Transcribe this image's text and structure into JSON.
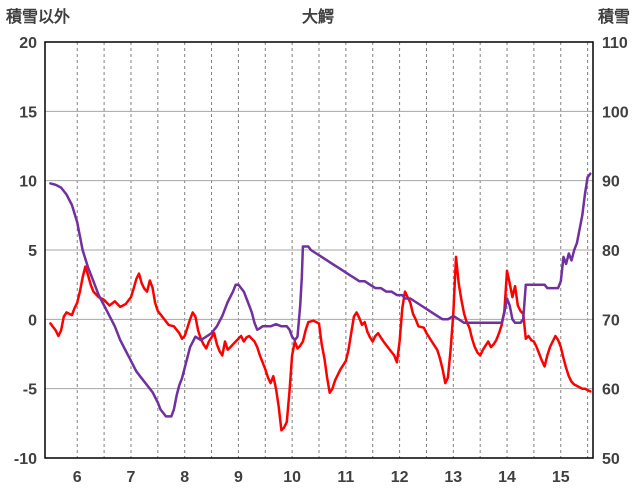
{
  "colors": {
    "red_series": "#ff0000",
    "purple_series": "#7030a0",
    "grid": "#a6a6a6",
    "grid_dashed": "#808080",
    "border": "#000000",
    "text": "#404040",
    "background": "#ffffff"
  },
  "chart_data": {
    "type": "line",
    "title": "大鰐",
    "left_axis": {
      "label": "積雪以外",
      "min": -10,
      "max": 20,
      "ticks": [
        20,
        15,
        10,
        5,
        0,
        -5,
        -10
      ]
    },
    "right_axis": {
      "label": "積雪",
      "min": 50,
      "max": 110,
      "ticks": [
        110,
        100,
        90,
        80,
        70,
        60,
        50
      ]
    },
    "x_axis": {
      "min": 5.4,
      "max": 15.6,
      "ticks": [
        6,
        7,
        8,
        9,
        10,
        11,
        12,
        13,
        14,
        15
      ],
      "grid_step": 0.5,
      "grid_start": 6,
      "grid_end": 15.5
    },
    "grid": {
      "horizontal": "solid",
      "vertical": "dashed"
    },
    "legend": "none",
    "series": [
      {
        "name": "red",
        "color": "#ff0000",
        "axis": "left",
        "points": [
          [
            5.5,
            -0.3
          ],
          [
            5.6,
            -0.8
          ],
          [
            5.65,
            -1.2
          ],
          [
            5.7,
            -0.8
          ],
          [
            5.75,
            0.2
          ],
          [
            5.8,
            0.5
          ],
          [
            5.9,
            0.3
          ],
          [
            5.95,
            0.8
          ],
          [
            6.0,
            1.2
          ],
          [
            6.05,
            2.0
          ],
          [
            6.1,
            3.0
          ],
          [
            6.15,
            3.8
          ],
          [
            6.2,
            3.2
          ],
          [
            6.25,
            2.5
          ],
          [
            6.3,
            2.0
          ],
          [
            6.4,
            1.6
          ],
          [
            6.5,
            1.4
          ],
          [
            6.6,
            1.0
          ],
          [
            6.7,
            1.3
          ],
          [
            6.8,
            0.9
          ],
          [
            6.9,
            1.1
          ],
          [
            7.0,
            1.6
          ],
          [
            7.05,
            2.2
          ],
          [
            7.1,
            2.9
          ],
          [
            7.15,
            3.3
          ],
          [
            7.2,
            2.6
          ],
          [
            7.25,
            2.2
          ],
          [
            7.3,
            2.0
          ],
          [
            7.35,
            2.8
          ],
          [
            7.4,
            2.3
          ],
          [
            7.45,
            1.2
          ],
          [
            7.5,
            0.6
          ],
          [
            7.6,
            0.1
          ],
          [
            7.7,
            -0.4
          ],
          [
            7.8,
            -0.5
          ],
          [
            7.9,
            -1.0
          ],
          [
            7.95,
            -1.4
          ],
          [
            8.0,
            -1.2
          ],
          [
            8.05,
            -0.6
          ],
          [
            8.1,
            0.0
          ],
          [
            8.15,
            0.5
          ],
          [
            8.2,
            0.2
          ],
          [
            8.25,
            -0.8
          ],
          [
            8.3,
            -1.4
          ],
          [
            8.35,
            -1.8
          ],
          [
            8.4,
            -2.1
          ],
          [
            8.45,
            -1.6
          ],
          [
            8.5,
            -1.3
          ],
          [
            8.55,
            -1.0
          ],
          [
            8.6,
            -1.8
          ],
          [
            8.65,
            -2.3
          ],
          [
            8.7,
            -2.6
          ],
          [
            8.75,
            -1.6
          ],
          [
            8.8,
            -2.2
          ],
          [
            8.85,
            -2.0
          ],
          [
            8.9,
            -1.8
          ],
          [
            8.95,
            -1.6
          ],
          [
            9.0,
            -1.4
          ],
          [
            9.05,
            -1.2
          ],
          [
            9.1,
            -1.6
          ],
          [
            9.15,
            -1.3
          ],
          [
            9.2,
            -1.2
          ],
          [
            9.25,
            -1.4
          ],
          [
            9.3,
            -1.6
          ],
          [
            9.35,
            -2.0
          ],
          [
            9.4,
            -2.6
          ],
          [
            9.45,
            -3.1
          ],
          [
            9.5,
            -3.6
          ],
          [
            9.55,
            -4.2
          ],
          [
            9.6,
            -4.6
          ],
          [
            9.65,
            -4.1
          ],
          [
            9.7,
            -5.0
          ],
          [
            9.75,
            -6.3
          ],
          [
            9.8,
            -8.0
          ],
          [
            9.85,
            -7.8
          ],
          [
            9.9,
            -7.4
          ],
          [
            9.95,
            -5.2
          ],
          [
            10.0,
            -2.6
          ],
          [
            10.05,
            -1.6
          ],
          [
            10.1,
            -2.1
          ],
          [
            10.15,
            -1.9
          ],
          [
            10.2,
            -1.6
          ],
          [
            10.25,
            -0.8
          ],
          [
            10.3,
            -0.2
          ],
          [
            10.4,
            -0.1
          ],
          [
            10.5,
            -0.3
          ],
          [
            10.55,
            -1.8
          ],
          [
            10.6,
            -2.8
          ],
          [
            10.65,
            -4.2
          ],
          [
            10.7,
            -5.3
          ],
          [
            10.75,
            -5.0
          ],
          [
            10.8,
            -4.4
          ],
          [
            10.9,
            -3.6
          ],
          [
            11.0,
            -3.0
          ],
          [
            11.05,
            -2.2
          ],
          [
            11.1,
            -1.0
          ],
          [
            11.15,
            0.2
          ],
          [
            11.2,
            0.5
          ],
          [
            11.25,
            0.1
          ],
          [
            11.3,
            -0.4
          ],
          [
            11.35,
            -0.2
          ],
          [
            11.4,
            -0.9
          ],
          [
            11.45,
            -1.3
          ],
          [
            11.5,
            -1.6
          ],
          [
            11.55,
            -1.2
          ],
          [
            11.6,
            -1.0
          ],
          [
            11.65,
            -1.3
          ],
          [
            11.7,
            -1.6
          ],
          [
            11.8,
            -2.1
          ],
          [
            11.9,
            -2.6
          ],
          [
            11.95,
            -3.1
          ],
          [
            12.0,
            -1.6
          ],
          [
            12.05,
            0.8
          ],
          [
            12.1,
            2.0
          ],
          [
            12.15,
            1.6
          ],
          [
            12.2,
            1.2
          ],
          [
            12.25,
            0.4
          ],
          [
            12.3,
            0.0
          ],
          [
            12.35,
            -0.5
          ],
          [
            12.45,
            -0.6
          ],
          [
            12.5,
            -1.0
          ],
          [
            12.6,
            -1.6
          ],
          [
            12.7,
            -2.2
          ],
          [
            12.75,
            -2.8
          ],
          [
            12.8,
            -3.6
          ],
          [
            12.85,
            -4.6
          ],
          [
            12.9,
            -4.2
          ],
          [
            12.95,
            -2.2
          ],
          [
            13.0,
            0.4
          ],
          [
            13.05,
            4.5
          ],
          [
            13.1,
            2.6
          ],
          [
            13.15,
            1.4
          ],
          [
            13.2,
            0.4
          ],
          [
            13.25,
            -0.2
          ],
          [
            13.3,
            -0.6
          ],
          [
            13.35,
            -1.4
          ],
          [
            13.4,
            -2.0
          ],
          [
            13.45,
            -2.4
          ],
          [
            13.5,
            -2.6
          ],
          [
            13.55,
            -2.2
          ],
          [
            13.6,
            -1.9
          ],
          [
            13.65,
            -1.6
          ],
          [
            13.7,
            -2.0
          ],
          [
            13.75,
            -1.8
          ],
          [
            13.8,
            -1.5
          ],
          [
            13.85,
            -1.0
          ],
          [
            13.9,
            -0.4
          ],
          [
            13.95,
            0.6
          ],
          [
            14.0,
            3.5
          ],
          [
            14.05,
            2.6
          ],
          [
            14.1,
            1.6
          ],
          [
            14.15,
            2.4
          ],
          [
            14.2,
            1.0
          ],
          [
            14.25,
            0.6
          ],
          [
            14.3,
            0.4
          ],
          [
            14.35,
            -1.4
          ],
          [
            14.4,
            -1.2
          ],
          [
            14.45,
            -1.5
          ],
          [
            14.5,
            -1.6
          ],
          [
            14.55,
            -2.0
          ],
          [
            14.6,
            -2.5
          ],
          [
            14.65,
            -3.0
          ],
          [
            14.7,
            -3.4
          ],
          [
            14.75,
            -2.6
          ],
          [
            14.8,
            -2.0
          ],
          [
            14.85,
            -1.6
          ],
          [
            14.9,
            -1.2
          ],
          [
            14.95,
            -1.5
          ],
          [
            15.0,
            -2.0
          ],
          [
            15.05,
            -2.8
          ],
          [
            15.1,
            -3.5
          ],
          [
            15.15,
            -4.1
          ],
          [
            15.2,
            -4.5
          ],
          [
            15.25,
            -4.7
          ],
          [
            15.3,
            -4.8
          ],
          [
            15.35,
            -4.9
          ],
          [
            15.4,
            -5.0
          ],
          [
            15.45,
            -5.0
          ],
          [
            15.5,
            -5.1
          ],
          [
            15.55,
            -5.2
          ]
        ]
      },
      {
        "name": "purple",
        "color": "#7030a0",
        "axis": "right",
        "points": [
          [
            5.5,
            89.6
          ],
          [
            5.6,
            89.4
          ],
          [
            5.7,
            89.0
          ],
          [
            5.8,
            88.0
          ],
          [
            5.9,
            86.5
          ],
          [
            6.0,
            84.0
          ],
          [
            6.05,
            82.0
          ],
          [
            6.1,
            80.0
          ],
          [
            6.2,
            77.5
          ],
          [
            6.3,
            75.5
          ],
          [
            6.4,
            73.5
          ],
          [
            6.5,
            72.0
          ],
          [
            6.6,
            70.5
          ],
          [
            6.7,
            69.0
          ],
          [
            6.8,
            67.0
          ],
          [
            6.9,
            65.5
          ],
          [
            7.0,
            64.0
          ],
          [
            7.1,
            62.5
          ],
          [
            7.2,
            61.5
          ],
          [
            7.3,
            60.5
          ],
          [
            7.4,
            59.5
          ],
          [
            7.5,
            58.0
          ],
          [
            7.55,
            57.0
          ],
          [
            7.6,
            56.5
          ],
          [
            7.65,
            56.0
          ],
          [
            7.75,
            56.0
          ],
          [
            7.8,
            57.0
          ],
          [
            7.85,
            59.0
          ],
          [
            7.9,
            60.5
          ],
          [
            7.95,
            61.5
          ],
          [
            8.0,
            63.0
          ],
          [
            8.1,
            66.0
          ],
          [
            8.2,
            67.5
          ],
          [
            8.3,
            67.0
          ],
          [
            8.4,
            67.5
          ],
          [
            8.5,
            68.0
          ],
          [
            8.6,
            69.0
          ],
          [
            8.7,
            70.5
          ],
          [
            8.8,
            72.5
          ],
          [
            8.9,
            74.0
          ],
          [
            8.95,
            75.0
          ],
          [
            9.0,
            75.0
          ],
          [
            9.05,
            74.5
          ],
          [
            9.1,
            74.0
          ],
          [
            9.15,
            73.0
          ],
          [
            9.2,
            72.0
          ],
          [
            9.25,
            71.0
          ],
          [
            9.3,
            69.5
          ],
          [
            9.35,
            68.5
          ],
          [
            9.4,
            68.7
          ],
          [
            9.45,
            69.0
          ],
          [
            9.5,
            69.0
          ],
          [
            9.6,
            69.0
          ],
          [
            9.7,
            69.3
          ],
          [
            9.8,
            69.0
          ],
          [
            9.9,
            69.0
          ],
          [
            9.95,
            68.5
          ],
          [
            10.0,
            67.5
          ],
          [
            10.05,
            67.0
          ],
          [
            10.1,
            67.5
          ],
          [
            10.15,
            72.0
          ],
          [
            10.18,
            76.0
          ],
          [
            10.2,
            80.5
          ],
          [
            10.3,
            80.5
          ],
          [
            10.35,
            80.0
          ],
          [
            10.45,
            79.5
          ],
          [
            10.55,
            79.0
          ],
          [
            10.65,
            78.5
          ],
          [
            10.75,
            78.0
          ],
          [
            10.85,
            77.5
          ],
          [
            10.95,
            77.0
          ],
          [
            11.05,
            76.5
          ],
          [
            11.15,
            76.0
          ],
          [
            11.25,
            75.5
          ],
          [
            11.35,
            75.5
          ],
          [
            11.45,
            75.0
          ],
          [
            11.55,
            74.5
          ],
          [
            11.65,
            74.5
          ],
          [
            11.75,
            74.0
          ],
          [
            11.85,
            74.0
          ],
          [
            11.95,
            73.5
          ],
          [
            12.05,
            73.5
          ],
          [
            12.1,
            73.0
          ],
          [
            12.2,
            73.0
          ],
          [
            12.3,
            72.5
          ],
          [
            12.4,
            72.0
          ],
          [
            12.5,
            71.5
          ],
          [
            12.6,
            71.0
          ],
          [
            12.7,
            70.5
          ],
          [
            12.8,
            70.0
          ],
          [
            12.9,
            70.0
          ],
          [
            13.0,
            70.5
          ],
          [
            13.1,
            70.0
          ],
          [
            13.2,
            69.5
          ],
          [
            13.3,
            69.5
          ],
          [
            13.4,
            69.5
          ],
          [
            13.5,
            69.5
          ],
          [
            13.6,
            69.5
          ],
          [
            13.7,
            69.5
          ],
          [
            13.8,
            69.5
          ],
          [
            13.9,
            69.5
          ],
          [
            13.95,
            71.0
          ],
          [
            14.0,
            73.0
          ],
          [
            14.05,
            72.0
          ],
          [
            14.1,
            70.0
          ],
          [
            14.15,
            69.5
          ],
          [
            14.2,
            69.5
          ],
          [
            14.25,
            69.5
          ],
          [
            14.3,
            70.0
          ],
          [
            14.35,
            75.0
          ],
          [
            14.4,
            75.0
          ],
          [
            14.5,
            75.0
          ],
          [
            14.6,
            75.0
          ],
          [
            14.7,
            75.0
          ],
          [
            14.75,
            74.5
          ],
          [
            14.8,
            74.5
          ],
          [
            14.9,
            74.5
          ],
          [
            14.95,
            74.5
          ],
          [
            15.0,
            75.5
          ],
          [
            15.05,
            79.0
          ],
          [
            15.1,
            78.0
          ],
          [
            15.15,
            79.5
          ],
          [
            15.2,
            78.5
          ],
          [
            15.25,
            80.0
          ],
          [
            15.3,
            81.0
          ],
          [
            15.35,
            83.0
          ],
          [
            15.4,
            85.0
          ],
          [
            15.45,
            88.0
          ],
          [
            15.5,
            90.5
          ],
          [
            15.55,
            91.0
          ]
        ]
      }
    ]
  }
}
